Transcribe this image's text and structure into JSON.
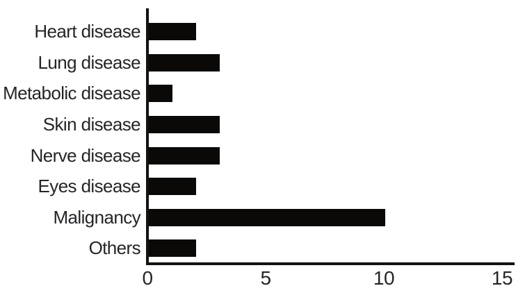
{
  "chart_data": {
    "type": "bar",
    "orientation": "horizontal",
    "title": "",
    "xlabel": "",
    "ylabel": "",
    "categories": [
      "Heart disease",
      "Lung disease",
      "Metabolic disease",
      "Skin disease",
      "Nerve disease",
      "Eyes disease",
      "Malignancy",
      "Others"
    ],
    "values": [
      2,
      3,
      1,
      3,
      3,
      2,
      10,
      2
    ],
    "xticks": [
      "0",
      "5",
      "10",
      "15"
    ],
    "xtick_values": [
      0,
      5,
      10,
      15
    ],
    "xlim": [
      0,
      15.6
    ],
    "grid": false,
    "legend": false,
    "bar_color": "#0a0908",
    "axis_color": "#15130f",
    "text_color": "#272428"
  }
}
